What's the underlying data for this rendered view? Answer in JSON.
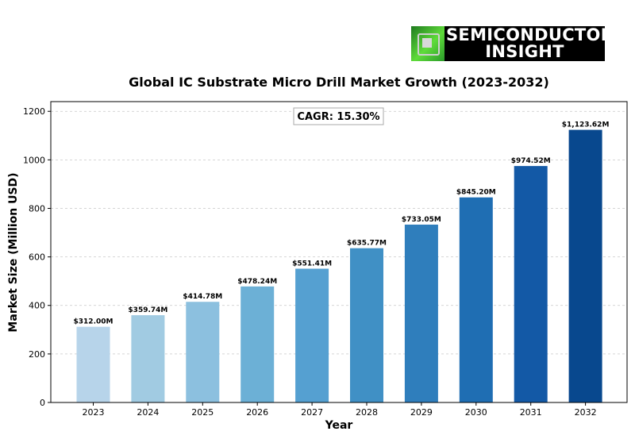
{
  "logo": {
    "line1": "SEMICONDUCTOR",
    "line2": "INSIGHT"
  },
  "colors": [
    "#b7d4ea",
    "#a1cbe2",
    "#8cc0df",
    "#6cb0d6",
    "#55a0d1",
    "#4090c5",
    "#2f7ebc",
    "#1f6eb3",
    "#1359a6",
    "#08488e"
  ],
  "chart_data": {
    "type": "bar",
    "title": "Global IC Substrate Micro Drill Market Growth (2023-2032)",
    "xlabel": "Year",
    "ylabel": "Market Size (Million USD)",
    "categories": [
      "2023",
      "2024",
      "2025",
      "2026",
      "2027",
      "2028",
      "2029",
      "2030",
      "2031",
      "2032"
    ],
    "values": [
      312.0,
      359.74,
      414.78,
      478.24,
      551.41,
      635.77,
      733.05,
      845.2,
      974.52,
      1123.62
    ],
    "value_labels": [
      "$312.00M",
      "$359.74M",
      "$414.78M",
      "$478.24M",
      "$551.41M",
      "$635.77M",
      "$733.05M",
      "$845.20M",
      "$974.52M",
      "$1,123.62M"
    ],
    "ylim": [
      0,
      1240
    ],
    "yticks": [
      "0",
      "200",
      "400",
      "600",
      "800",
      "1000",
      "1200"
    ],
    "grid": true,
    "annotation": "CAGR: 15.30%"
  }
}
